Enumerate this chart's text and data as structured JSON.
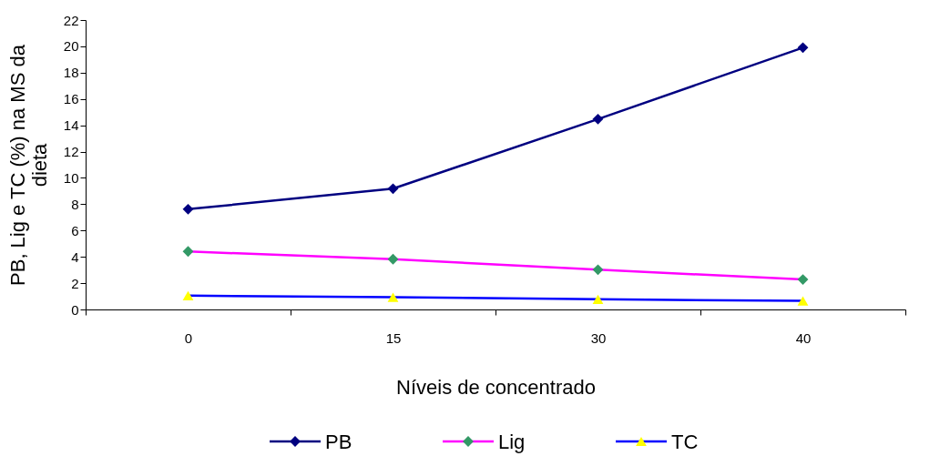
{
  "chart_data": {
    "type": "line",
    "xlabel": "Níveis de concentrado",
    "ylabel": "PB, Lig e TC (%) na MS da dieta",
    "categories": [
      "0",
      "15",
      "30",
      "40"
    ],
    "series": [
      {
        "name": "PB",
        "color": "#000080",
        "colors": [
          "#000080",
          "#000080",
          "#000080",
          "#000080"
        ],
        "marker": "diamond",
        "values": [
          7.62,
          9.18,
          14.47,
          19.9
        ]
      },
      {
        "name": "Lig",
        "color": "#ff00ff",
        "colors": [
          "#339966",
          "#339966",
          "#339966",
          "#339966"
        ],
        "marker": "diamond",
        "values": [
          4.41,
          3.82,
          3.02,
          2.28
        ]
      },
      {
        "name": "TC",
        "color": "#0000ff",
        "colors": [
          "#ffff00",
          "#ffff00",
          "#ffff00",
          "#ffff00"
        ],
        "marker": "triangle",
        "values": [
          1.05,
          0.93,
          0.77,
          0.65
        ]
      }
    ],
    "ylim": [
      0,
      22
    ],
    "yticks": [
      0,
      2,
      4,
      6,
      8,
      10,
      12,
      14,
      16,
      18,
      20,
      22
    ],
    "grid": false,
    "legend": "bottom",
    "line_style": "solid"
  }
}
